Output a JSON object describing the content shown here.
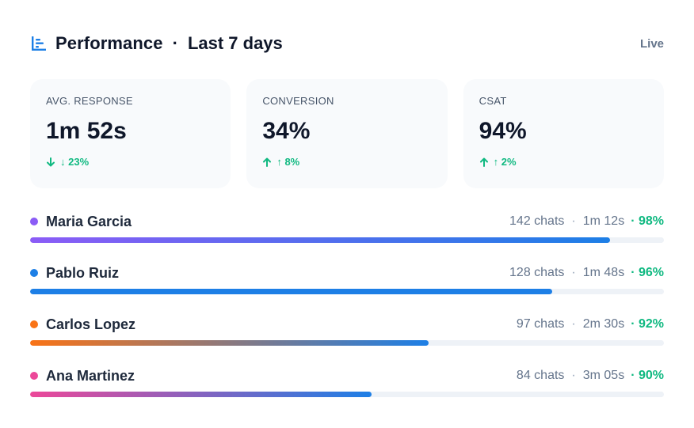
{
  "header": {
    "title": "Performance",
    "separator": "·",
    "period": "Last 7 days",
    "live": "Live",
    "accent": "#1d7fe6"
  },
  "metrics": [
    {
      "label": "AVG. RESPONSE",
      "value": "1m 52s",
      "delta": "↓ 23%",
      "direction": "down"
    },
    {
      "label": "CONVERSION",
      "value": "34%",
      "delta": "↑ 8%",
      "direction": "up"
    },
    {
      "label": "CSAT",
      "value": "94%",
      "delta": "↑ 2%",
      "direction": "up"
    }
  ],
  "agents": [
    {
      "name": "Maria Garcia",
      "chats": "142 chats",
      "time": "1m 12s",
      "csat": "· 98%",
      "progress": 0.915,
      "dot": "#8b5cf6",
      "grad_start": "#8b5cf6",
      "grad_end": "#1d7fe6"
    },
    {
      "name": "Pablo Ruiz",
      "chats": "128 chats",
      "time": "1m 48s",
      "csat": "· 96%",
      "progress": 0.824,
      "dot": "#1d7fe6",
      "grad_start": "#1d7fe6",
      "grad_end": "#1d7fe6"
    },
    {
      "name": "Carlos Lopez",
      "chats": "97 chats",
      "time": "2m 30s",
      "csat": "· 92%",
      "progress": 0.629,
      "dot": "#f97316",
      "grad_start": "#f97316",
      "grad_end": "#1d7fe6"
    },
    {
      "name": "Ana Martinez",
      "chats": "84 chats",
      "time": "3m 05s",
      "csat": "· 90%",
      "progress": 0.539,
      "dot": "#ec4899",
      "grad_start": "#ec4899",
      "grad_end": "#1d7fe6"
    }
  ],
  "stat_separator": "·"
}
